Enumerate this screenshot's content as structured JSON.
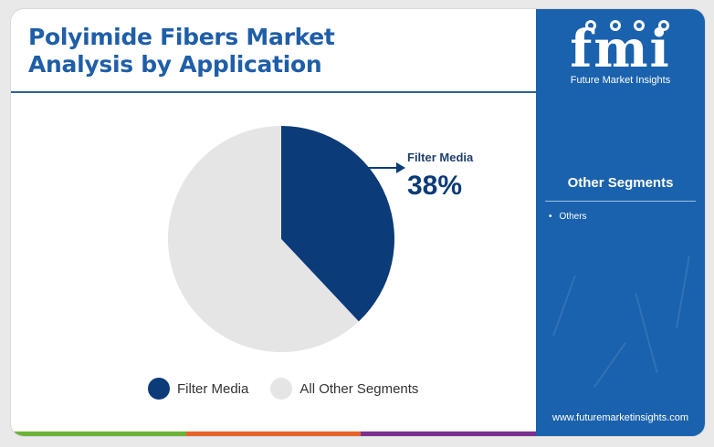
{
  "header": {
    "title_line1": "Polyimide Fibers Market",
    "title_line2": "Analysis by Application"
  },
  "chart_data": {
    "type": "pie",
    "categories": [
      "Filter Media",
      "All Other Segments"
    ],
    "values": [
      38,
      62
    ],
    "colors": [
      "#0b3b78",
      "#e5e5e6"
    ],
    "callout": {
      "label": "Filter Media",
      "value": "38%"
    },
    "legend": [
      "Filter Media",
      "All Other Segments"
    ],
    "legend_position": "bottom"
  },
  "sidebar": {
    "logo_mark": "fmi",
    "logo_text": "Future Market Insights",
    "heading": "Other Segments",
    "items": [
      "Others"
    ],
    "url": "www.futuremarketinsights.com"
  },
  "colors": {
    "title": "#1f5ea8",
    "sidebar_bg": "#1a62ad",
    "bottom_bar": [
      "#6bb33a",
      "#e8632b",
      "#7a2f8e"
    ]
  }
}
